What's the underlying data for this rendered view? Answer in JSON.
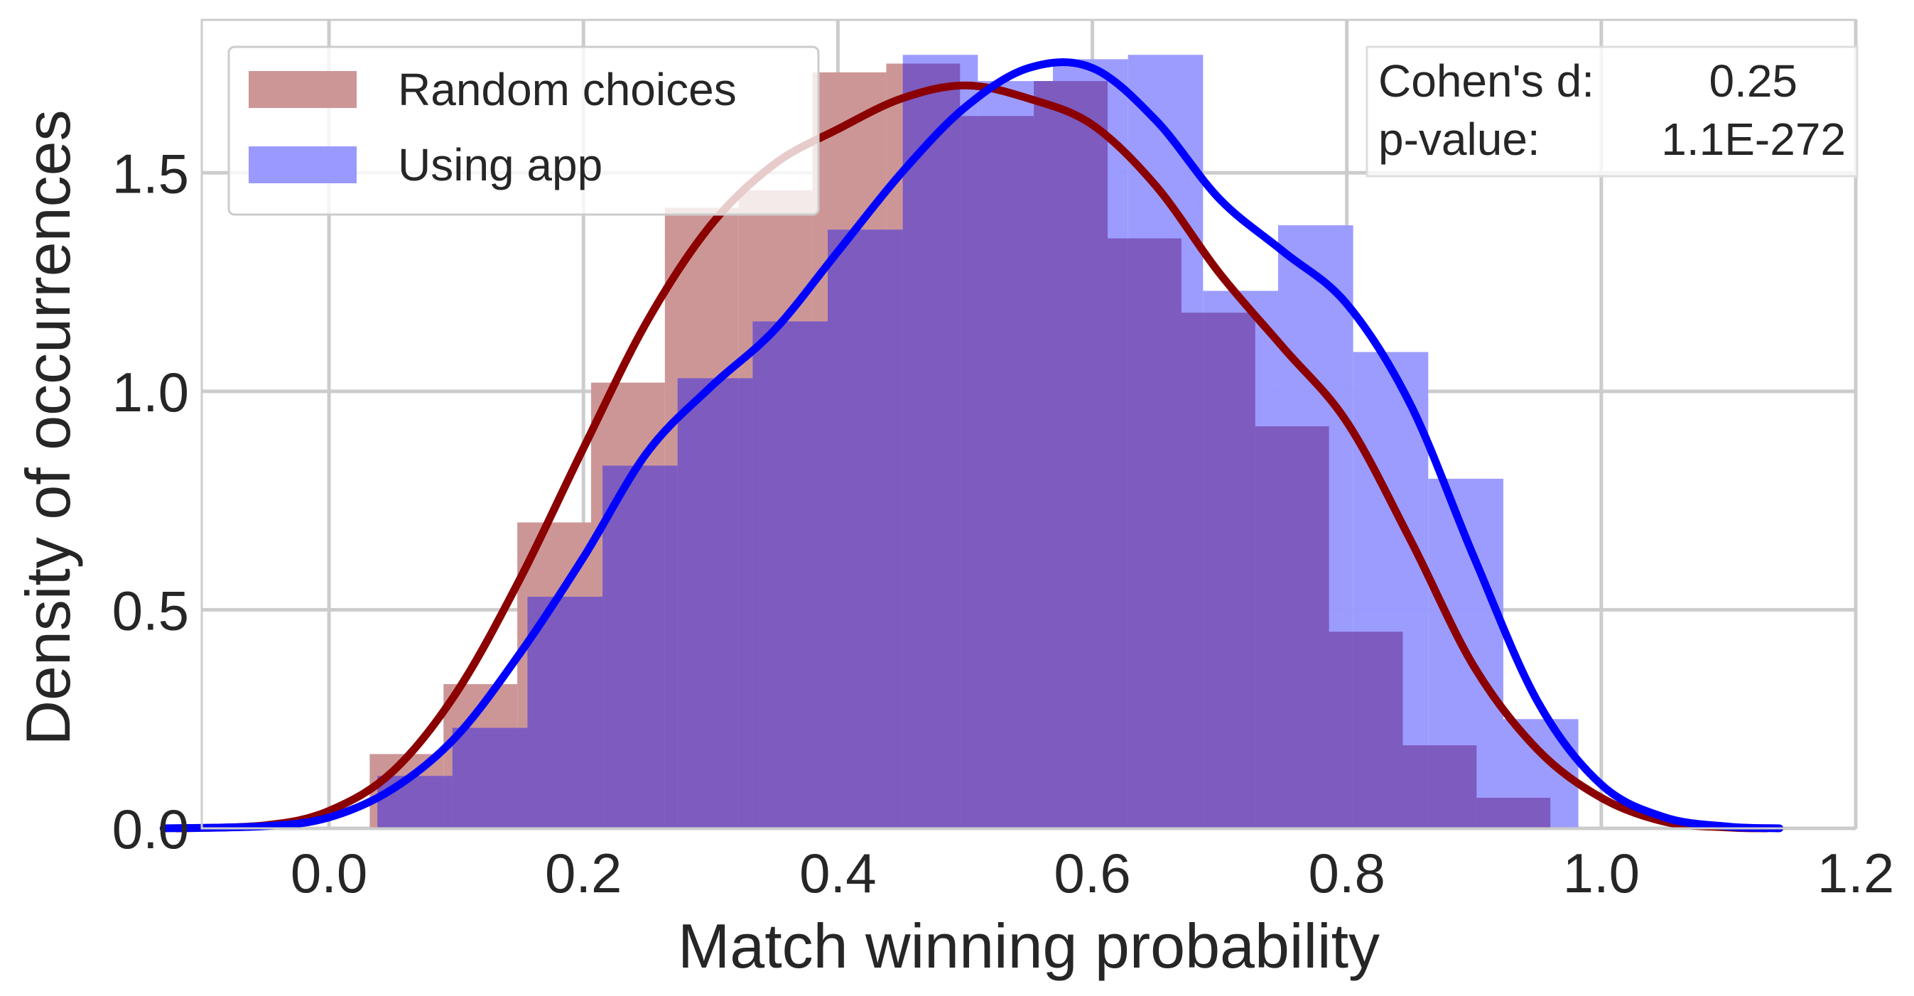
{
  "chart_data": {
    "type": "histogram-kde",
    "xlabel": "Match winning probability",
    "ylabel": "Density of occurrences",
    "xlim": [
      -0.1,
      1.2
    ],
    "ylim": [
      0,
      1.85
    ],
    "xticks": [
      0.0,
      0.2,
      0.4,
      0.6,
      0.8,
      1.0,
      1.2
    ],
    "xtick_labels": [
      "0.0",
      "0.2",
      "0.4",
      "0.6",
      "0.8",
      "1.0",
      "1.2"
    ],
    "yticks": [
      0.0,
      0.5,
      1.0,
      1.5
    ],
    "ytick_labels": [
      "0.0",
      "0.5",
      "1.0",
      "1.5"
    ],
    "grid": true,
    "legend_position": "top-left",
    "series": [
      {
        "name": "Random choices",
        "hist_color": "#cd9696",
        "kde_color": "#8b0000",
        "bin_edges": [
          0.032,
          0.09,
          0.148,
          0.206,
          0.264,
          0.322,
          0.38,
          0.438,
          0.496,
          0.554,
          0.612,
          0.67,
          0.728,
          0.786,
          0.844,
          0.902,
          0.96
        ],
        "density": [
          0.17,
          0.33,
          0.7,
          1.02,
          1.42,
          1.46,
          1.73,
          1.75,
          1.63,
          1.71,
          1.35,
          1.18,
          0.92,
          0.45,
          0.19,
          0.07
        ],
        "kde": [
          [
            -0.12,
            0.0
          ],
          [
            -0.05,
            0.007
          ],
          [
            0.0,
            0.04
          ],
          [
            0.05,
            0.13
          ],
          [
            0.1,
            0.31
          ],
          [
            0.15,
            0.57
          ],
          [
            0.2,
            0.87
          ],
          [
            0.25,
            1.16
          ],
          [
            0.3,
            1.38
          ],
          [
            0.35,
            1.52
          ],
          [
            0.4,
            1.6
          ],
          [
            0.45,
            1.67
          ],
          [
            0.5,
            1.7
          ],
          [
            0.55,
            1.67
          ],
          [
            0.6,
            1.61
          ],
          [
            0.65,
            1.47
          ],
          [
            0.7,
            1.27
          ],
          [
            0.75,
            1.1
          ],
          [
            0.8,
            0.93
          ],
          [
            0.85,
            0.66
          ],
          [
            0.9,
            0.37
          ],
          [
            0.95,
            0.18
          ],
          [
            1.0,
            0.07
          ],
          [
            1.05,
            0.015
          ],
          [
            1.1,
            0.002
          ],
          [
            1.13,
            0.0
          ]
        ]
      },
      {
        "name": "Using app",
        "hist_color": "#9999ff",
        "kde_color": "#0000ff",
        "bin_edges": [
          0.038,
          0.097,
          0.156,
          0.215,
          0.274,
          0.333,
          0.392,
          0.451,
          0.51,
          0.569,
          0.628,
          0.687,
          0.746,
          0.805,
          0.864,
          0.923,
          0.982
        ],
        "density": [
          0.12,
          0.23,
          0.53,
          0.83,
          1.03,
          1.16,
          1.37,
          1.77,
          1.71,
          1.76,
          1.77,
          1.23,
          1.38,
          1.09,
          0.8,
          0.25
        ],
        "kde": [
          [
            -0.13,
            0.0
          ],
          [
            -0.05,
            0.005
          ],
          [
            0.0,
            0.025
          ],
          [
            0.05,
            0.09
          ],
          [
            0.1,
            0.21
          ],
          [
            0.15,
            0.4
          ],
          [
            0.2,
            0.62
          ],
          [
            0.25,
            0.86
          ],
          [
            0.3,
            1.01
          ],
          [
            0.35,
            1.14
          ],
          [
            0.4,
            1.32
          ],
          [
            0.45,
            1.5
          ],
          [
            0.5,
            1.65
          ],
          [
            0.55,
            1.74
          ],
          [
            0.6,
            1.74
          ],
          [
            0.65,
            1.62
          ],
          [
            0.7,
            1.44
          ],
          [
            0.75,
            1.32
          ],
          [
            0.8,
            1.2
          ],
          [
            0.85,
            0.97
          ],
          [
            0.9,
            0.62
          ],
          [
            0.95,
            0.29
          ],
          [
            1.0,
            0.1
          ],
          [
            1.05,
            0.025
          ],
          [
            1.1,
            0.004
          ],
          [
            1.14,
            0.0
          ]
        ]
      }
    ],
    "overlap_color": "#7d5bbf",
    "stats": {
      "cohens_label": "Cohen's d:",
      "cohens_value": "0.25",
      "pvalue_label": "p-value:",
      "pvalue_value": "1.1E-272"
    }
  }
}
